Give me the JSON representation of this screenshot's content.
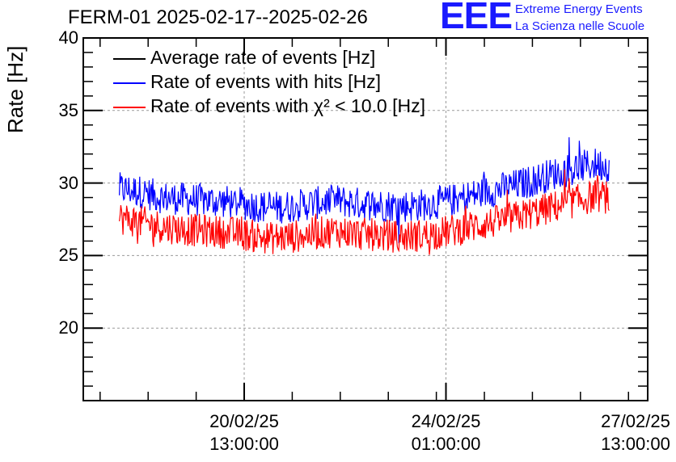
{
  "chart_data": {
    "type": "line",
    "title": "FERM-01 2025-02-17--2025-02-26",
    "ylabel": "Rate [Hz]",
    "xlabel": "",
    "ylim": [
      15,
      40
    ],
    "xlim": [
      "2025-02-17 18:00",
      "2025-02-27 13:00"
    ],
    "yticks": [
      20,
      25,
      30,
      35,
      40
    ],
    "yticklabels": [
      "20",
      "25",
      "30",
      "35",
      "40"
    ],
    "xticks": [
      {
        "date": "20/02/25",
        "time": "13:00:00",
        "t": "2025-02-20 13:00"
      },
      {
        "date": "24/02/25",
        "time": "01:00:00",
        "t": "2025-02-24 01:00"
      },
      {
        "date": "27/02/25",
        "time": "13:00:00",
        "t": "2025-02-27 13:00"
      }
    ],
    "grid": true,
    "legend_position": "top-left",
    "series": [
      {
        "name": "Average rate of events [Hz]",
        "color": "#000000",
        "values_note": "",
        "x": [],
        "y": []
      },
      {
        "name": "Rate of events with hits [Hz]",
        "color": "#0000ff",
        "x": [
          "2025-02-18 09:00",
          "2025-02-18 18:00",
          "2025-02-19 03:00",
          "2025-02-19 12:00",
          "2025-02-19 21:00",
          "2025-02-20 06:00",
          "2025-02-20 15:00",
          "2025-02-21 00:00",
          "2025-02-21 09:00",
          "2025-02-21 18:00",
          "2025-02-22 03:00",
          "2025-02-22 12:00",
          "2025-02-22 21:00",
          "2025-02-23 06:00",
          "2025-02-23 15:00",
          "2025-02-24 00:00",
          "2025-02-24 09:00",
          "2025-02-24 18:00",
          "2025-02-25 03:00",
          "2025-02-25 12:00",
          "2025-02-25 21:00",
          "2025-02-26 06:00",
          "2025-02-26 15:00",
          "2025-02-26 21:00"
        ],
        "y": [
          29.6,
          29.4,
          29.0,
          28.9,
          28.8,
          28.7,
          28.5,
          28.3,
          28.4,
          28.6,
          28.8,
          28.6,
          28.5,
          28.4,
          28.5,
          28.7,
          29.0,
          29.4,
          29.7,
          30.1,
          30.6,
          31.0,
          31.3,
          31.2
        ]
      },
      {
        "name": "Rate of events with χ² < 10.0 [Hz]",
        "color": "#ff0000",
        "x": [
          "2025-02-18 09:00",
          "2025-02-18 18:00",
          "2025-02-19 03:00",
          "2025-02-19 12:00",
          "2025-02-19 21:00",
          "2025-02-20 06:00",
          "2025-02-20 15:00",
          "2025-02-21 00:00",
          "2025-02-21 09:00",
          "2025-02-21 18:00",
          "2025-02-22 03:00",
          "2025-02-22 12:00",
          "2025-02-22 21:00",
          "2025-02-23 06:00",
          "2025-02-23 15:00",
          "2025-02-24 00:00",
          "2025-02-24 09:00",
          "2025-02-24 18:00",
          "2025-02-25 03:00",
          "2025-02-25 12:00",
          "2025-02-25 21:00",
          "2025-02-26 06:00",
          "2025-02-26 15:00",
          "2025-02-26 21:00"
        ],
        "y": [
          27.6,
          27.3,
          27.0,
          26.8,
          26.7,
          26.6,
          26.4,
          26.2,
          26.3,
          26.5,
          26.7,
          26.5,
          26.4,
          26.3,
          26.4,
          26.6,
          26.9,
          27.2,
          27.5,
          27.9,
          28.3,
          28.7,
          29.1,
          29.0
        ]
      }
    ]
  },
  "logo": {
    "mark": "EEE",
    "line1": "Extreme Energy Events",
    "line2": "La Scienza nelle Scuole",
    "color": "#1a1aff"
  }
}
